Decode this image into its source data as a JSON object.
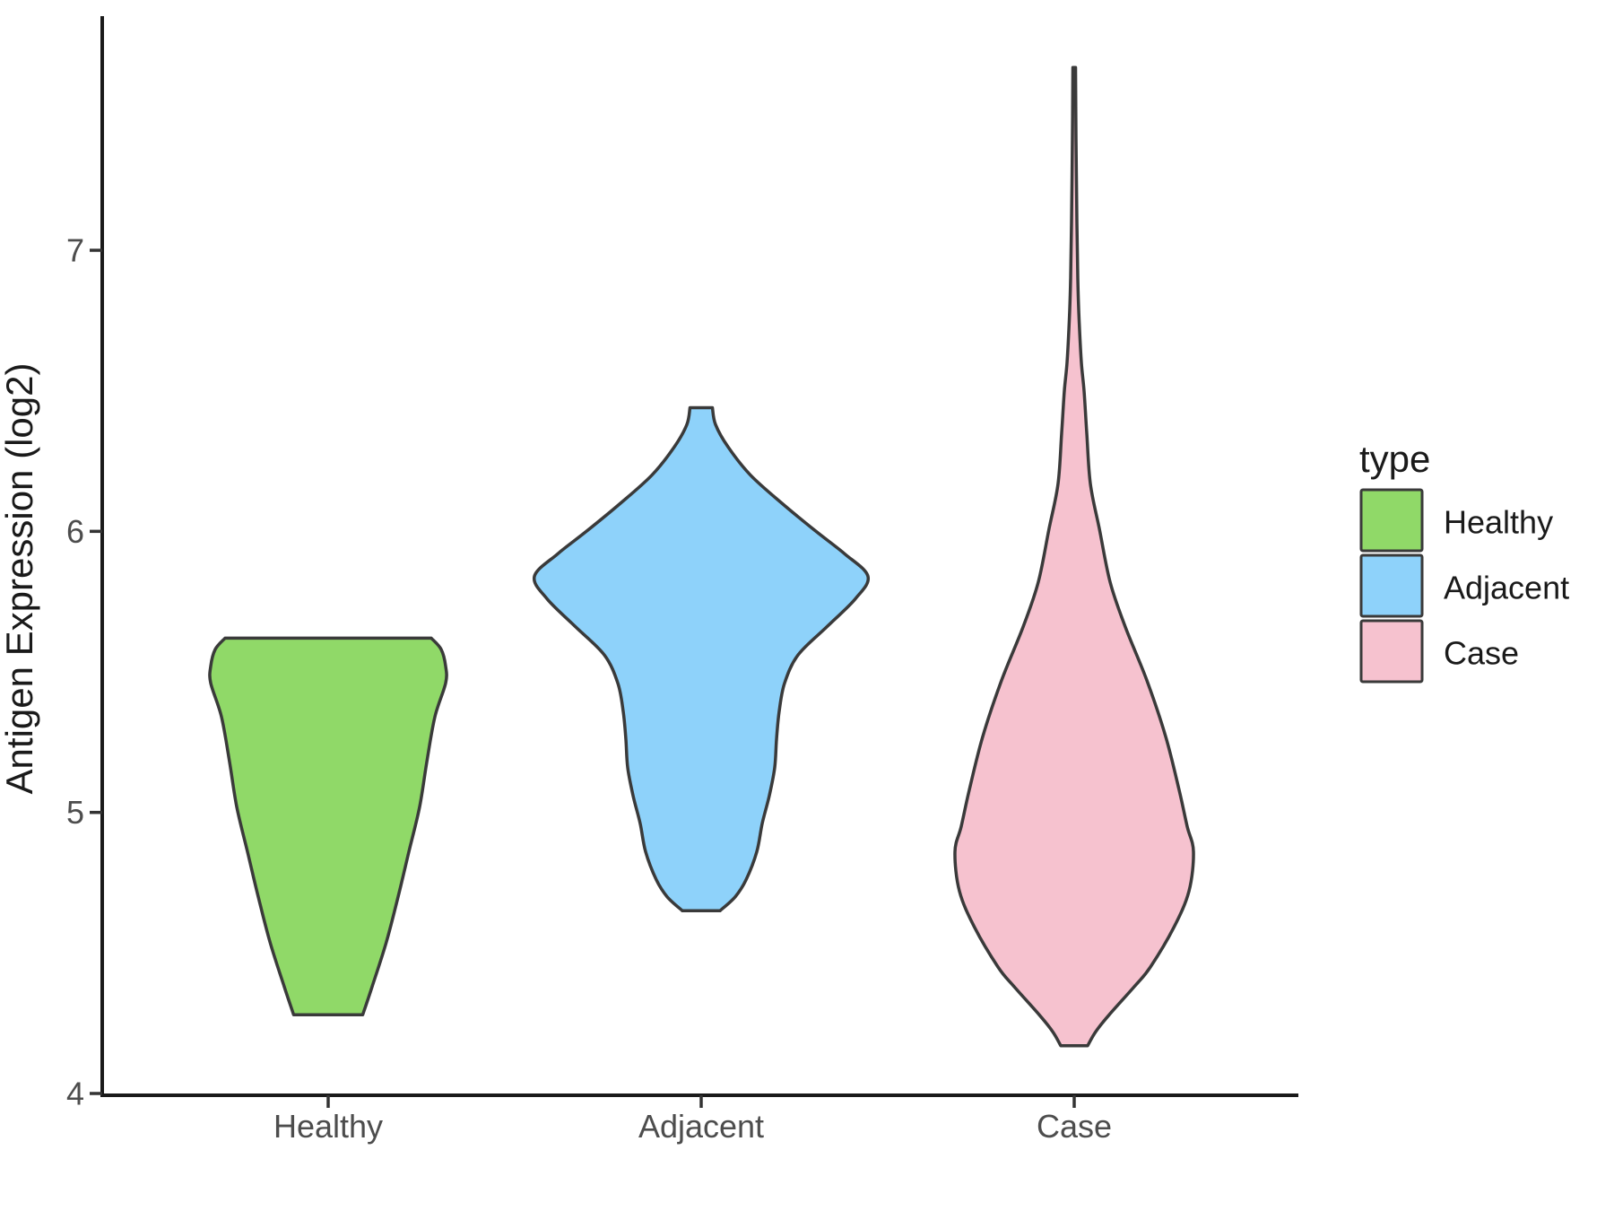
{
  "chart_data": {
    "type": "violin",
    "title": "",
    "xlabel": "",
    "ylabel": "Antigen Expression (log2)",
    "categories": [
      "Healthy",
      "Adjacent",
      "Case"
    ],
    "y_axis": {
      "ticks": [
        4,
        5,
        6,
        7
      ],
      "range": [
        3.99,
        7.83
      ],
      "grid": false
    },
    "legend": {
      "title": "type",
      "position": "right",
      "entries": [
        {
          "label": "Healthy",
          "color": "#90D968"
        },
        {
          "label": "Adjacent",
          "color": "#8ED2FA"
        },
        {
          "label": "Case",
          "color": "#F6C2CF"
        }
      ]
    },
    "violins": [
      {
        "name": "Healthy",
        "color": "#90D968",
        "value_min": 4.28,
        "value_max": 5.62,
        "profile": [
          [
            5.62,
            115
          ],
          [
            5.58,
            126
          ],
          [
            5.52,
            131
          ],
          [
            5.46,
            131
          ],
          [
            5.34,
            119
          ],
          [
            5.18,
            110
          ],
          [
            5.02,
            102
          ],
          [
            4.86,
            90
          ],
          [
            4.7,
            78
          ],
          [
            4.54,
            65
          ],
          [
            4.38,
            49
          ],
          [
            4.28,
            38.5
          ]
        ]
      },
      {
        "name": "Adjacent",
        "color": "#8ED2FA",
        "value_min": 4.65,
        "value_max": 6.44,
        "profile": [
          [
            6.44,
            12.5
          ],
          [
            6.38,
            16
          ],
          [
            6.3,
            30
          ],
          [
            6.2,
            55
          ],
          [
            6.1,
            90
          ],
          [
            6.0,
            128
          ],
          [
            5.92,
            160
          ],
          [
            5.84,
            186
          ],
          [
            5.76,
            172
          ],
          [
            5.66,
            140
          ],
          [
            5.56,
            108
          ],
          [
            5.46,
            93
          ],
          [
            5.36,
            87
          ],
          [
            5.26,
            84
          ],
          [
            5.16,
            82
          ],
          [
            5.06,
            76
          ],
          [
            4.96,
            68
          ],
          [
            4.86,
            62
          ],
          [
            4.76,
            50
          ],
          [
            4.7,
            38
          ],
          [
            4.65,
            21
          ]
        ]
      },
      {
        "name": "Case",
        "color": "#F6C2CF",
        "value_min": 4.17,
        "value_max": 7.65,
        "profile": [
          [
            7.65,
            1.5
          ],
          [
            7.4,
            2
          ],
          [
            7.1,
            3
          ],
          [
            6.9,
            4
          ],
          [
            6.75,
            5.5
          ],
          [
            6.6,
            8
          ],
          [
            6.5,
            11
          ],
          [
            6.35,
            14
          ],
          [
            6.17,
            18
          ],
          [
            6.01,
            28
          ],
          [
            5.82,
            40
          ],
          [
            5.66,
            57
          ],
          [
            5.47,
            81
          ],
          [
            5.27,
            102
          ],
          [
            5.08,
            117
          ],
          [
            4.95,
            126
          ],
          [
            4.86,
            133
          ],
          [
            4.72,
            128
          ],
          [
            4.59,
            111
          ],
          [
            4.45,
            85
          ],
          [
            4.38,
            67
          ],
          [
            4.28,
            39
          ],
          [
            4.22,
            24
          ],
          [
            4.17,
            15
          ]
        ]
      }
    ],
    "colors": {
      "outline": "#3A3A3A",
      "axis_line": "#1A1A1A",
      "tick_mark": "#333333",
      "tick_label": "#4D4D4D",
      "legend_text": "#1A1A1A",
      "background": "#FFFFFF"
    }
  }
}
